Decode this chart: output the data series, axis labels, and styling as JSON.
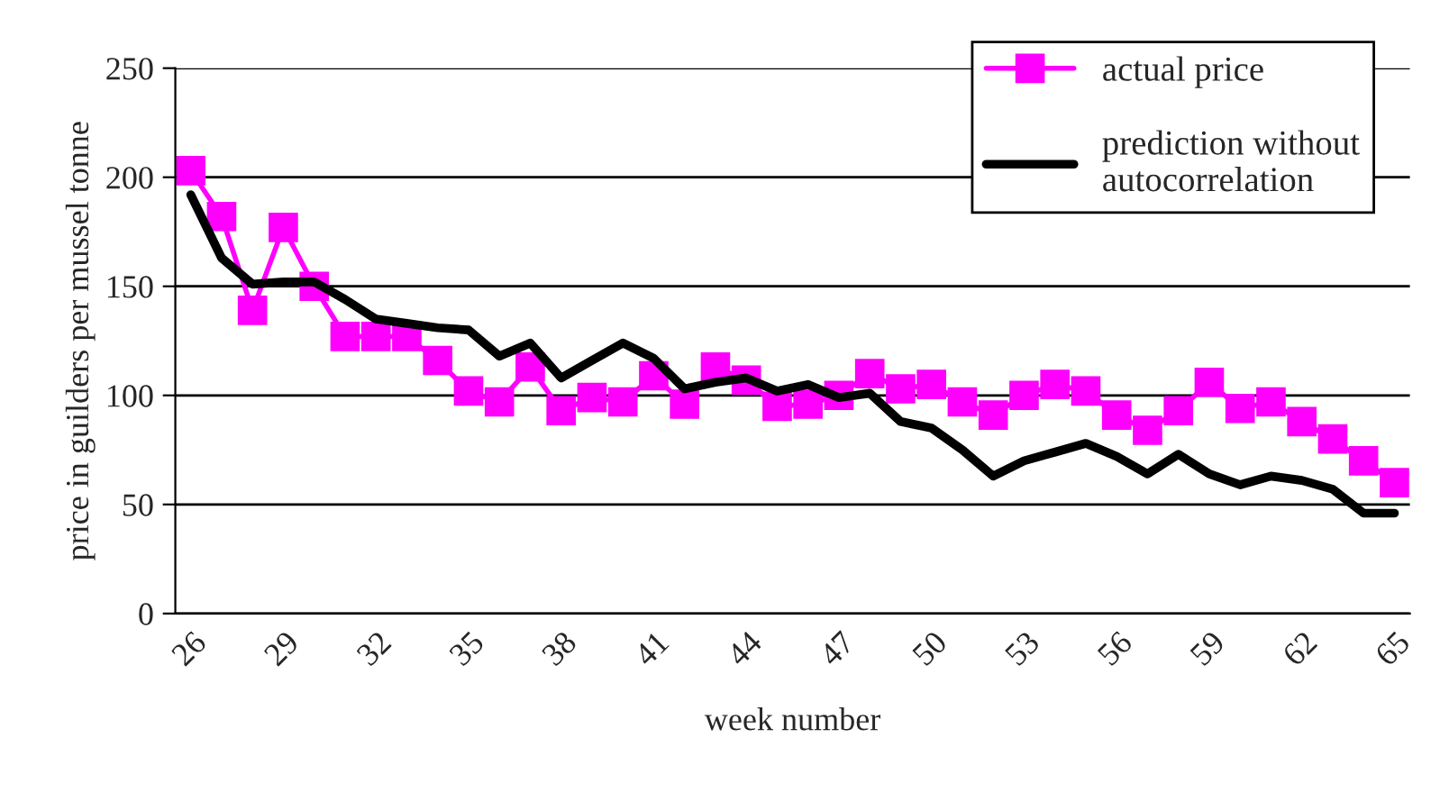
{
  "chart_data": {
    "type": "line",
    "xlabel": "week number",
    "ylabel": "price in guilders per mussel tonne",
    "categories": [
      "26",
      null,
      null,
      "29",
      null,
      null,
      "32",
      null,
      null,
      "35",
      null,
      null,
      "38",
      null,
      null,
      "41",
      null,
      null,
      "44",
      null,
      null,
      "47",
      null,
      null,
      "50",
      null,
      null,
      "53",
      null,
      null,
      "56",
      null,
      null,
      "59",
      null,
      null,
      "62",
      null,
      null,
      "65"
    ],
    "series": [
      {
        "name": "actual price",
        "color": "#ff00ff",
        "marker": "square",
        "values": [
          203,
          182,
          139,
          177,
          150,
          127,
          127,
          127,
          116,
          102,
          97,
          113,
          93,
          99,
          97,
          109,
          96,
          113,
          107,
          95,
          96,
          100,
          110,
          103,
          105,
          97,
          91,
          100,
          105,
          102,
          91,
          84,
          93,
          106,
          94,
          97,
          88,
          80,
          70,
          60
        ]
      },
      {
        "name": "prediction without autocorrelation",
        "color": "#000000",
        "marker": "none",
        "values": [
          192,
          163,
          151,
          152,
          152,
          144,
          135,
          133,
          131,
          130,
          118,
          124,
          108,
          116,
          124,
          117,
          103,
          106,
          108,
          102,
          105,
          99,
          101,
          88,
          85,
          75,
          63,
          70,
          74,
          78,
          72,
          64,
          73,
          64,
          59,
          63,
          61,
          57,
          46,
          46
        ]
      }
    ],
    "ylim": [
      0,
      250
    ],
    "yticks": [
      0,
      50,
      100,
      150,
      200,
      250
    ],
    "grid": "y",
    "legend": "top right",
    "line_style": "solid"
  }
}
